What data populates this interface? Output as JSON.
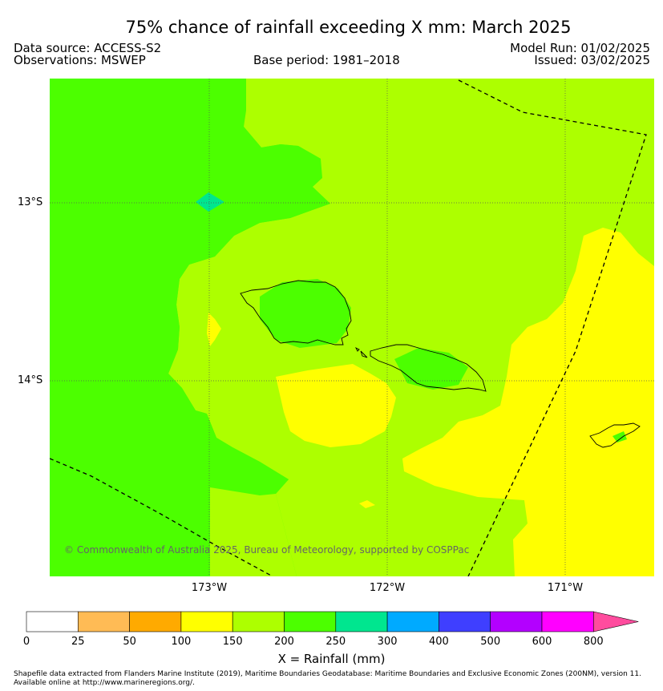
{
  "header": {
    "title": "75% chance of rainfall exceeding X mm: March 2025",
    "data_source": "Data source: ACCESS-S2",
    "observations": "Observations: MSWEP",
    "base_period": "Base period: 1981–2018",
    "model_run": "Model Run: 01/02/2025",
    "issued": "Issued: 03/02/2025"
  },
  "map": {
    "copyright": "© Commonwealth of Australia 2025, Bureau of Meteorology, supported by COSPPac",
    "lat_labels": [
      "13°S",
      "14°S"
    ],
    "lon_labels": [
      "173°W",
      "172°W",
      "171°W"
    ],
    "colors": {
      "band_100_150": "#ffff00",
      "band_150_200": "#adff00",
      "band_200_250": "#4cff00",
      "band_250_300": "#00e68f",
      "gridline": "#555555",
      "eez_boundary": "#000000"
    }
  },
  "colorbar": {
    "title": "X = Rainfall (mm)",
    "tick_labels": [
      "0",
      "25",
      "50",
      "100",
      "150",
      "200",
      "250",
      "300",
      "400",
      "500",
      "600",
      "800"
    ],
    "colors": [
      "#ffffff",
      "#ffbb55",
      "#ffaa00",
      "#ffff00",
      "#adff00",
      "#4cff00",
      "#00e68f",
      "#00aaff",
      "#3f3fff",
      "#b300ff",
      "#ff00ff",
      "#ff4c9e"
    ]
  },
  "footer": {
    "line1": "Shapefile data extracted from Flanders Marine Institute (2019), Maritime Boundaries Geodatabase: Maritime Boundaries and Exclusive Economic Zones (200NM), version 11.",
    "line2": "Available online at http://www.marineregions.org/."
  }
}
